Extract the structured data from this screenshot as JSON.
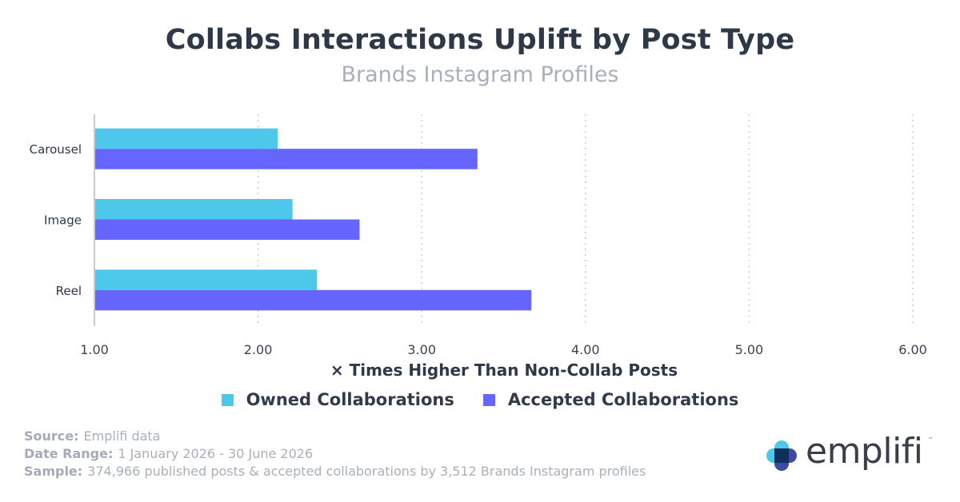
{
  "header": {
    "title": "Collabs Interactions Uplift by Post Type",
    "subtitle": "Brands Instagram Profiles"
  },
  "chart_data": {
    "type": "bar",
    "orientation": "horizontal",
    "title": "Collabs Interactions Uplift by Post Type",
    "subtitle": "Brands Instagram Profiles",
    "xlabel": "× Times Higher Than Non-Collab Posts",
    "ylabel": "",
    "categories": [
      "Carousel",
      "Image",
      "Reel"
    ],
    "series": [
      {
        "name": "Owned Collaborations",
        "color": "#4dc7ea",
        "values": [
          2.12,
          2.21,
          2.36
        ]
      },
      {
        "name": "Accepted Collaborations",
        "color": "#6666ff",
        "values": [
          3.34,
          2.62,
          3.67
        ]
      }
    ],
    "xlim": [
      1,
      6
    ],
    "xticks": [
      "1.00",
      "2.00",
      "3.00",
      "4.00",
      "5.00",
      "6.00"
    ],
    "grid": "vertical dotted",
    "legend": "bottom"
  },
  "legend": {
    "owned_label": "Owned Collaborations",
    "accepted_label": "Accepted Collaborations",
    "owned_color": "#4dc7ea",
    "accepted_color": "#6666ff"
  },
  "footer": {
    "source_label": "Source:",
    "source_value": "Emplifi data",
    "date_label": "Date Range:",
    "date_value": "1 January 2026 - 30 June 2026",
    "sample_label": "Sample:",
    "sample_value": "374,966 published posts & accepted collaborations by 3,512 Brands Instagram profiles"
  },
  "brand": {
    "name": "emplifi",
    "trademark": "™",
    "icon": "emplifi-logo-icon"
  }
}
